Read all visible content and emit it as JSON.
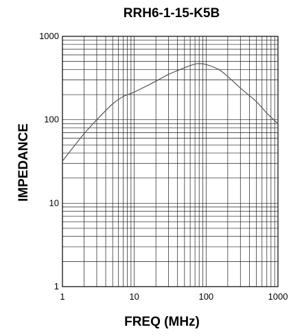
{
  "chart_data": {
    "type": "line",
    "title": "RRH6-1-15-K5B",
    "xlabel": "FREQ (MHz)",
    "ylabel": "IMPEDANCE",
    "x_scale": "log",
    "y_scale": "log",
    "xlim": [
      1,
      1000
    ],
    "ylim": [
      1,
      1000
    ],
    "x_ticks": [
      "1",
      "10",
      "100",
      "1000"
    ],
    "y_ticks": [
      "1",
      "10",
      "100",
      "1000"
    ],
    "grid": true,
    "series": [
      {
        "x": [
          1,
          1.5,
          2,
          3,
          5,
          7,
          10,
          20,
          30,
          50,
          70,
          80,
          100,
          150,
          200,
          300,
          500,
          700,
          1000
        ],
        "y": [
          32,
          50,
          68,
          100,
          155,
          190,
          215,
          290,
          350,
          420,
          465,
          470,
          460,
          400,
          330,
          240,
          165,
          120,
          90
        ],
        "color": "#555555"
      }
    ]
  }
}
